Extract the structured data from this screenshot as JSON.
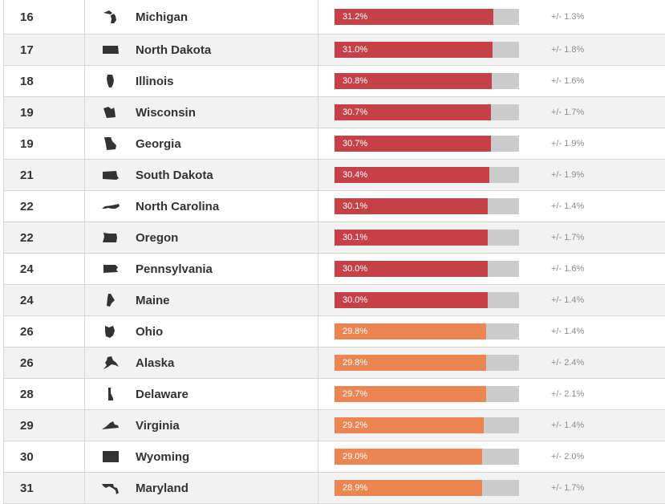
{
  "colors": {
    "high": "#c64147",
    "mid": "#ec8552",
    "track": "#cccccc",
    "icon": "#333333"
  },
  "chart_data": {
    "type": "bar",
    "orientation": "horizontal",
    "xlim": [
      0,
      36.2
    ],
    "value_format": "{v}%",
    "rows": [
      {
        "rank": "16",
        "state": "Michigan",
        "value": 31.2,
        "label": "31.2%",
        "moe": "+/- 1.3%",
        "tier": "high",
        "icon": "michigan-shape-icon"
      },
      {
        "rank": "17",
        "state": "North Dakota",
        "value": 31.0,
        "label": "31.0%",
        "moe": "+/- 1.8%",
        "tier": "high",
        "icon": "north-dakota-shape-icon"
      },
      {
        "rank": "18",
        "state": "Illinois",
        "value": 30.8,
        "label": "30.8%",
        "moe": "+/- 1.6%",
        "tier": "high",
        "icon": "illinois-shape-icon"
      },
      {
        "rank": "19",
        "state": "Wisconsin",
        "value": 30.7,
        "label": "30.7%",
        "moe": "+/- 1.7%",
        "tier": "high",
        "icon": "wisconsin-shape-icon"
      },
      {
        "rank": "19",
        "state": "Georgia",
        "value": 30.7,
        "label": "30.7%",
        "moe": "+/- 1.9%",
        "tier": "high",
        "icon": "georgia-shape-icon"
      },
      {
        "rank": "21",
        "state": "South Dakota",
        "value": 30.4,
        "label": "30.4%",
        "moe": "+/- 1.9%",
        "tier": "high",
        "icon": "south-dakota-shape-icon"
      },
      {
        "rank": "22",
        "state": "North Carolina",
        "value": 30.1,
        "label": "30.1%",
        "moe": "+/- 1.4%",
        "tier": "high",
        "icon": "north-carolina-shape-icon"
      },
      {
        "rank": "22",
        "state": "Oregon",
        "value": 30.1,
        "label": "30.1%",
        "moe": "+/- 1.7%",
        "tier": "high",
        "icon": "oregon-shape-icon"
      },
      {
        "rank": "24",
        "state": "Pennsylvania",
        "value": 30.0,
        "label": "30.0%",
        "moe": "+/- 1.6%",
        "tier": "high",
        "icon": "pennsylvania-shape-icon"
      },
      {
        "rank": "24",
        "state": "Maine",
        "value": 30.0,
        "label": "30.0%",
        "moe": "+/- 1.4%",
        "tier": "high",
        "icon": "maine-shape-icon"
      },
      {
        "rank": "26",
        "state": "Ohio",
        "value": 29.8,
        "label": "29.8%",
        "moe": "+/- 1.4%",
        "tier": "mid",
        "icon": "ohio-shape-icon"
      },
      {
        "rank": "26",
        "state": "Alaska",
        "value": 29.8,
        "label": "29.8%",
        "moe": "+/- 2.4%",
        "tier": "mid",
        "icon": "alaska-shape-icon"
      },
      {
        "rank": "28",
        "state": "Delaware",
        "value": 29.7,
        "label": "29.7%",
        "moe": "+/- 2.1%",
        "tier": "mid",
        "icon": "delaware-shape-icon"
      },
      {
        "rank": "29",
        "state": "Virginia",
        "value": 29.2,
        "label": "29.2%",
        "moe": "+/- 1.4%",
        "tier": "mid",
        "icon": "virginia-shape-icon"
      },
      {
        "rank": "30",
        "state": "Wyoming",
        "value": 29.0,
        "label": "29.0%",
        "moe": "+/- 2.0%",
        "tier": "mid",
        "icon": "wyoming-shape-icon"
      },
      {
        "rank": "31",
        "state": "Maryland",
        "value": 28.9,
        "label": "28.9%",
        "moe": "+/- 1.7%",
        "tier": "mid",
        "icon": "maryland-shape-icon"
      }
    ]
  }
}
